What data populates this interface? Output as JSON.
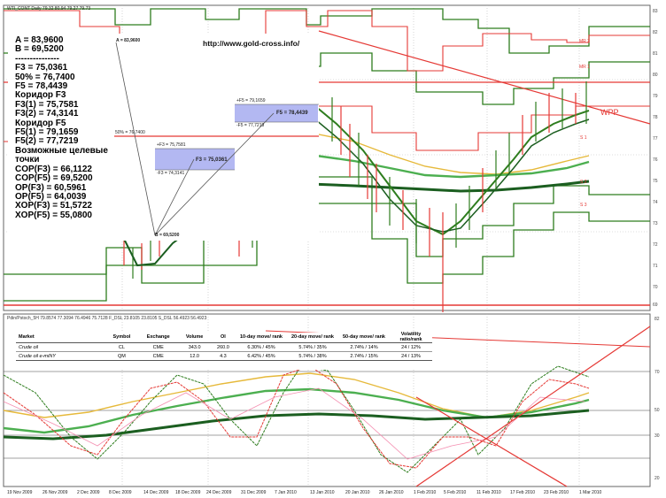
{
  "top_header": "WTI_CONT Daily  79.32 80.94 79.27 79.73",
  "bottom_header": "Pdin/Pstoch_5H 79.8574 77.3094 76.4946 75.7128  F_DSL 23.8105 23.8105  S_DSL 56.4923 56.4923",
  "site": "http://www.gold-cross.info/",
  "left_panel_lines": [
    "A = 83,9600",
    "B = 69,5200",
    "---------------",
    "F3 = 75,0361",
    "50% = 76,7400",
    "F5 = 78,4439",
    "Коридор F3",
    "F3(1) = 75,7581",
    "F3(2) = 74,3141",
    "Коридор F5",
    "F5(1) = 79,1659",
    "F5(2) = 77,7219",
    "Возможные целевые",
    "точки",
    "COP(F3) = 66,1122",
    "COP(F5) = 69,5200",
    "OP(F3) = 60,5961",
    "OP(F5) = 64,0039",
    "XOP(F3) = 51,5722",
    "XOP(F5) = 55,0800"
  ],
  "diagram": {
    "a_label": "A = 83,9600",
    "b_label": "B = 69,5200",
    "half_label": "50% = 76,7400",
    "f5_upper": "+F5 = 79,1659",
    "f5_center": "F5 = 78,4439",
    "f5_lower": "-F5 = 77,7219",
    "f3_upper": "+F3 = 75,7581",
    "f3_center": "F3 = 75,0361",
    "f3_lower": "-F3 = 74,3141"
  },
  "chart_tags": {
    "mr2": "MR 2",
    "mr1": "MR 1",
    "wpp": "WPP",
    "s1": "S 1",
    "s2": "S 2",
    "s3": "S 3"
  },
  "top_right_ticks": [
    "83",
    "82",
    "81",
    "80",
    "79",
    "78",
    "77",
    "76",
    "75",
    "74",
    "73",
    "72",
    "71",
    "70",
    "69"
  ],
  "bottom_right_ticks": [
    "82",
    "70",
    "50",
    "30",
    "20"
  ],
  "x_dates": [
    "19 Nov 2009",
    "26 Nov 2009",
    "2 Dec 2009",
    "8 Dec 2009",
    "14 Dec 2009",
    "18 Dec 2009",
    "24 Dec 2009",
    "31 Dec 2009",
    "7 Jan 2010",
    "13 Jan 2010",
    "20 Jan 2010",
    "26 Jan 2010",
    "1 Feb 2010",
    "5 Feb 2010",
    "11 Feb 2010",
    "17 Feb 2010",
    "23 Feb 2010",
    "1 Mar 2010"
  ],
  "market_table": {
    "headers": [
      "Market",
      "Symbol",
      "Exchange",
      "Volume",
      "OI",
      "10-day move/ rank",
      "20-day move/ rank",
      "50-day move/ rank",
      "Volatility ratio/rank"
    ],
    "rows": [
      [
        "Crude oil",
        "CL",
        "CME",
        "343.0",
        "260.0",
        "6.30% / 45%",
        "5.74% / 35%",
        "2.74% / 14%",
        "24 / 12%"
      ],
      [
        "Crude oil e-miNY",
        "QM",
        "CME",
        "12.0",
        "4.3",
        "6.42% / 45%",
        "5.74% / 38%",
        "2.74% / 15%",
        "24 / 13%"
      ]
    ]
  },
  "colors": {
    "green": "#2e7d1e",
    "dark_green": "#1b5e20",
    "red": "#e53935",
    "orange": "#ff7043",
    "yellow": "#e6b93a",
    "panel_blue": "#b3b8f2"
  }
}
